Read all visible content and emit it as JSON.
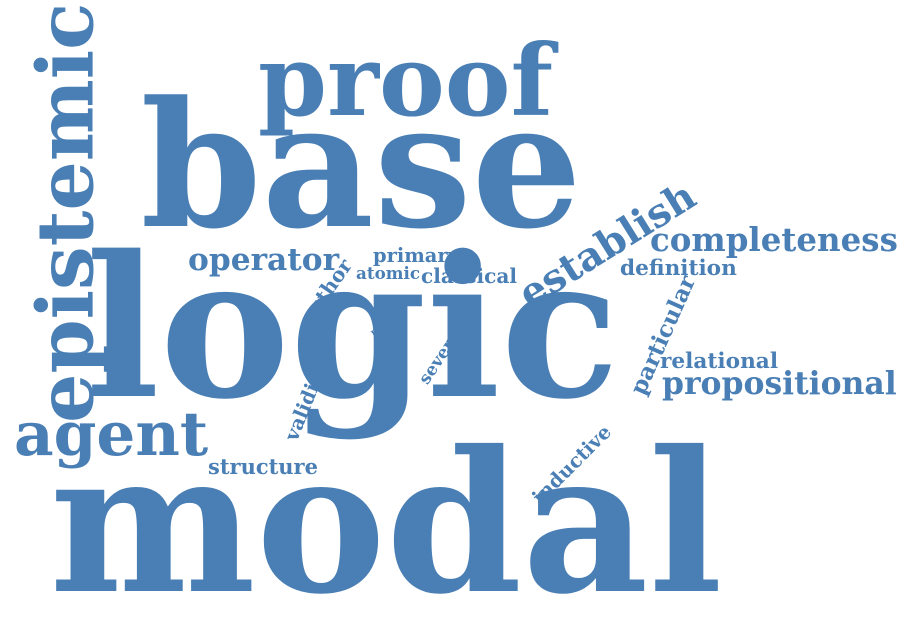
{
  "colors": {
    "word": "#4a7fb5",
    "background": "#ffffff"
  },
  "words": {
    "modal": "modal",
    "logic": "logic",
    "base": "base",
    "proof": "proof",
    "epistemic": "epistemic",
    "agent": "agent",
    "establish": "establish",
    "completeness": "completeness",
    "propositional": "propositional",
    "relational": "relational",
    "definition": "definition",
    "operator": "operator",
    "primary": "primary",
    "atomic": "atomic",
    "classical": "classical",
    "author": "author",
    "particular": "particular",
    "several": "several",
    "rule": "rule",
    "validity": "validity",
    "structure": "structure",
    "inductive": "inductive"
  }
}
